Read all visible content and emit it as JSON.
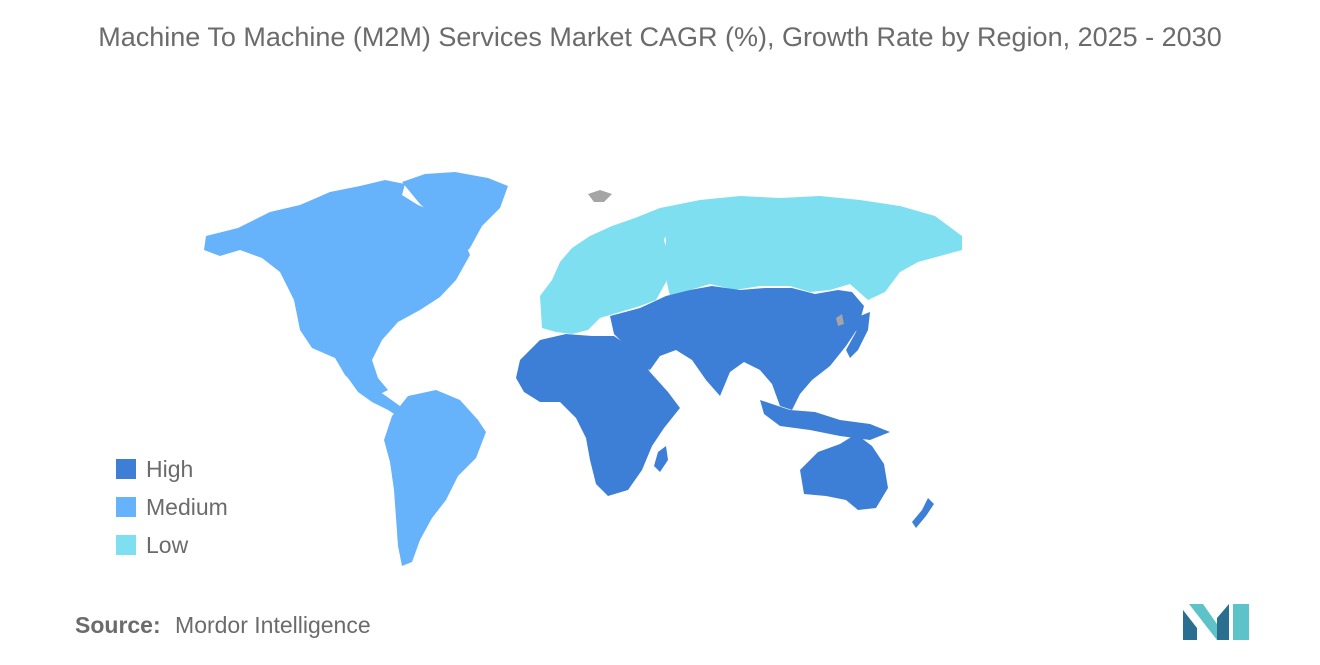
{
  "title": "Machine To Machine (M2M) Services Market CAGR (%), Growth Rate by Region, 2025 - 2030",
  "legend": [
    {
      "label": "High",
      "color": "#3d7fd6"
    },
    {
      "label": "Medium",
      "color": "#66b3fb"
    },
    {
      "label": "Low",
      "color": "#7ddff0"
    }
  ],
  "source": {
    "label": "Source:",
    "value": "Mordor Intelligence"
  },
  "no_data_color": "#a5a5a5",
  "regions": [
    {
      "name": "North America",
      "level": "Medium"
    },
    {
      "name": "South America",
      "level": "Medium"
    },
    {
      "name": "Europe",
      "level": "Low"
    },
    {
      "name": "Russia",
      "level": "Low"
    },
    {
      "name": "Asia",
      "level": "High"
    },
    {
      "name": "Middle East and Africa",
      "level": "High"
    },
    {
      "name": "Australia and New Zealand",
      "level": "High"
    }
  ]
}
